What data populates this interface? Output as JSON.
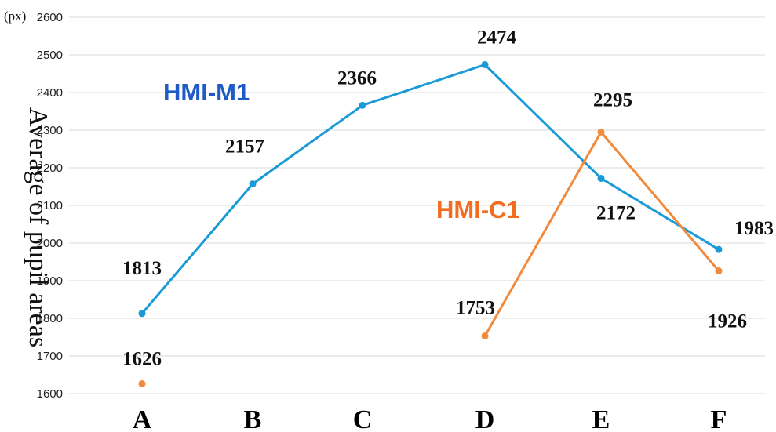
{
  "chart_data": {
    "type": "line",
    "categories": [
      "A",
      "B",
      "C",
      "D",
      "E",
      "F"
    ],
    "ylabel": "Average of pupil areas",
    "yunit": "(px)",
    "ylim": [
      1600,
      2600
    ],
    "yticks": [
      1600,
      1700,
      1800,
      1900,
      2000,
      2100,
      2200,
      2300,
      2400,
      2500,
      2600
    ],
    "grid": true,
    "series": [
      {
        "name": "HMI-M1",
        "color": "#1a9ad6",
        "label_color": "#1f5bc7",
        "values": [
          1813,
          2157,
          2366,
          2474,
          2172,
          1983
        ],
        "data_labels": [
          "1813",
          "2157",
          "2366",
          "2474",
          "2172",
          "1983"
        ]
      },
      {
        "name": "HMI-C1",
        "color": "#f28a3c",
        "label_color": "#f26d1f",
        "values": [
          1626,
          null,
          null,
          1753,
          2295,
          1926
        ],
        "data_labels": [
          "1626",
          "",
          "",
          "1753",
          "2295",
          "1926"
        ]
      }
    ]
  }
}
